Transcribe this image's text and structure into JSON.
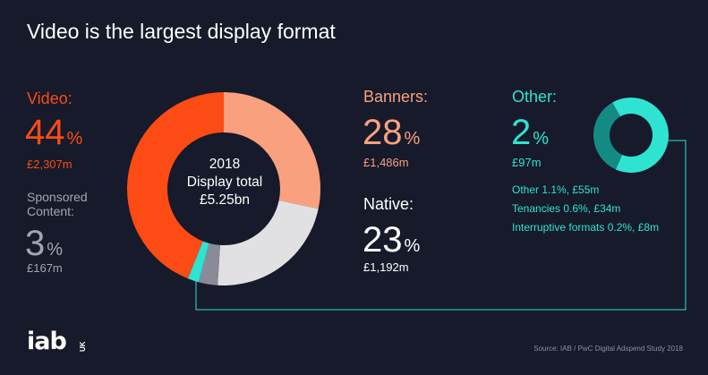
{
  "title": "Video is the largest display format",
  "center": {
    "year": "2018",
    "label": "Display total",
    "total": "£5.25bn"
  },
  "segments": {
    "video": {
      "label": "Video:",
      "value": "44",
      "unit": "%",
      "amount": "£2,307m"
    },
    "sponsored": {
      "label_line1": "Sponsored",
      "label_line2": "Content:",
      "value": "3",
      "unit": "%",
      "amount": "£167m"
    },
    "banners": {
      "label": "Banners:",
      "value": "28",
      "unit": "%",
      "amount": "£1,486m"
    },
    "native": {
      "label": "Native:",
      "value": "23",
      "unit": "%",
      "amount": "£1,192m"
    },
    "other": {
      "label": "Other:",
      "value": "2",
      "unit": "%",
      "amount": "£97m"
    }
  },
  "other_breakdown": [
    "Other 1.1%, £55m",
    "Tenancies 0.6%, £34m",
    "Interruptive formats 0.2%, £8m"
  ],
  "logo": {
    "text": "iab",
    "suffix": "UK"
  },
  "source": "Source: IAB / PwC Digital Adspend Study 2018",
  "colors": {
    "background": "#161a2a",
    "video": "#fc4b14",
    "banners": "#f9a07e",
    "native": "#e1e1e3",
    "sponsored": "#8a8b99",
    "other": "#2fe3d3",
    "other_dark": "#138b83"
  },
  "chart_data": [
    {
      "type": "pie",
      "title": "Video is the largest display format",
      "categories": [
        "Banners",
        "Native",
        "Sponsored Content",
        "Other",
        "Video"
      ],
      "values": [
        1486,
        1192,
        167,
        97,
        2307
      ],
      "percent": [
        28,
        23,
        3,
        2,
        44
      ],
      "unit": "£m",
      "total": "£5.25bn",
      "colors": [
        "#f9a07e",
        "#e1e1e3",
        "#8a8b99",
        "#2fe3d3",
        "#fc4b14"
      ]
    },
    {
      "type": "pie",
      "categories": [
        "Other",
        "Tenancies",
        "Interruptive formats"
      ],
      "values": [
        55,
        34,
        8
      ],
      "percent": [
        1.1,
        0.6,
        0.2
      ],
      "unit": "£m",
      "colors": [
        "#2fe3d3",
        "#138b83",
        "#2fe3d3"
      ]
    }
  ]
}
